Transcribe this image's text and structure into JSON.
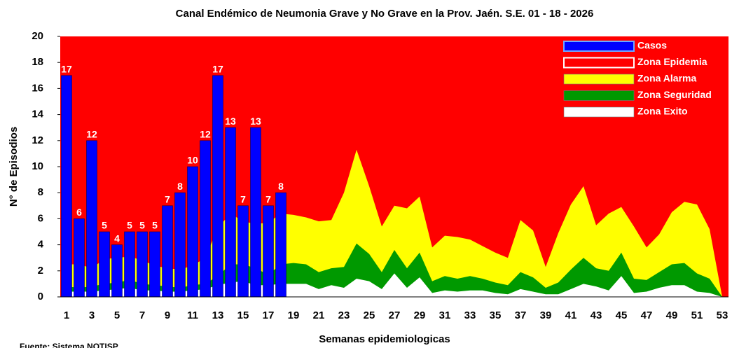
{
  "chart_data": {
    "type": "endemic_channel",
    "title": "Canal Endémico de Neumonia Grave y No Grave en la Prov. Jaén. S.E. 01 - 18 - 2026",
    "x_label": "Semanas epidemiologicas",
    "y_label": "N° de Episodios",
    "source": "Fuente: Sistema NOTISP",
    "categories": [
      "1",
      null,
      "3",
      null,
      "5",
      null,
      "7",
      null,
      "9",
      null,
      "11",
      null,
      "13",
      null,
      "15",
      null,
      "17",
      null,
      "19",
      null,
      "21",
      null,
      "23",
      null,
      "25",
      null,
      "27",
      null,
      "29",
      null,
      "31",
      null,
      "33",
      null,
      "35",
      null,
      "37",
      null,
      "39",
      null,
      "41",
      null,
      "43",
      null,
      "45",
      null,
      "47",
      null,
      "49",
      null,
      "51",
      null,
      "53"
    ],
    "ylim": [
      0,
      20
    ],
    "yticks": [
      0,
      2,
      4,
      6,
      8,
      10,
      12,
      14,
      16,
      18,
      20
    ],
    "legend": "top-right",
    "series": [
      {
        "name": "Casos",
        "type": "bar",
        "color": "#0000ff",
        "values": [
          17,
          6,
          12,
          5,
          4,
          5,
          5,
          5,
          7,
          8,
          10,
          12,
          17,
          13,
          7,
          13,
          7,
          8,
          null,
          null,
          null,
          null,
          null,
          null,
          null,
          null,
          null,
          null,
          null,
          null,
          null,
          null,
          null,
          null,
          null,
          null,
          null,
          null,
          null,
          null,
          null,
          null,
          null,
          null,
          null,
          null,
          null,
          null,
          null,
          null,
          null,
          null,
          null
        ]
      },
      {
        "name": "Zona Epidemia",
        "type": "area",
        "color": "#ff0000"
      },
      {
        "name": "Zona Alarma",
        "type": "area",
        "color": "#ffff00",
        "values": [
          2.5,
          2.5,
          2.2,
          2.9,
          3.0,
          3.1,
          2.8,
          2.4,
          2.2,
          2.1,
          2.4,
          3.0,
          5.3,
          6.4,
          5.8,
          5.6,
          5.7,
          6.4,
          6.3,
          6.1,
          5.8,
          5.9,
          8.0,
          11.3,
          8.5,
          5.4,
          7.0,
          6.8,
          7.7,
          3.8,
          4.7,
          4.6,
          4.4,
          3.9,
          3.4,
          3.0,
          5.9,
          5.1,
          2.3,
          4.9,
          7.1,
          8.5,
          5.5,
          6.4,
          6.9,
          5.4,
          3.8,
          4.8,
          6.5,
          7.3,
          7.1,
          5.2,
          0
        ]
      },
      {
        "name": "Zona Seguridad",
        "type": "area",
        "color": "#009900",
        "values": [
          0.8,
          0.7,
          0.8,
          1.0,
          1.1,
          1.3,
          1.0,
          0.9,
          0.8,
          0.7,
          0.9,
          1.0,
          1.6,
          2.5,
          2.5,
          2.2,
          1.7,
          2.5,
          2.6,
          2.5,
          1.9,
          2.2,
          2.3,
          4.1,
          3.3,
          1.9,
          3.6,
          2.2,
          3.4,
          1.2,
          1.6,
          1.4,
          1.6,
          1.4,
          1.1,
          0.9,
          1.9,
          1.5,
          0.7,
          1.1,
          2.1,
          3.0,
          2.2,
          2.0,
          3.4,
          1.4,
          1.3,
          1.9,
          2.5,
          2.6,
          1.8,
          1.4,
          0
        ]
      },
      {
        "name": "Zona Exito",
        "type": "area",
        "color": "#ffffff",
        "values": [
          0.4,
          0.4,
          0.4,
          0.5,
          0.6,
          0.7,
          0.5,
          0.5,
          0.4,
          0.4,
          0.5,
          0.6,
          0.9,
          1.1,
          1.2,
          0.9,
          0.9,
          1.0,
          1.0,
          1.0,
          0.6,
          0.9,
          0.7,
          1.4,
          1.2,
          0.6,
          1.8,
          0.7,
          1.5,
          0.3,
          0.5,
          0.4,
          0.5,
          0.5,
          0.3,
          0.2,
          0.6,
          0.4,
          0.2,
          0.2,
          0.6,
          1.0,
          0.8,
          0.5,
          1.6,
          0.3,
          0.4,
          0.7,
          0.9,
          0.9,
          0.4,
          0.3,
          0
        ]
      }
    ]
  }
}
